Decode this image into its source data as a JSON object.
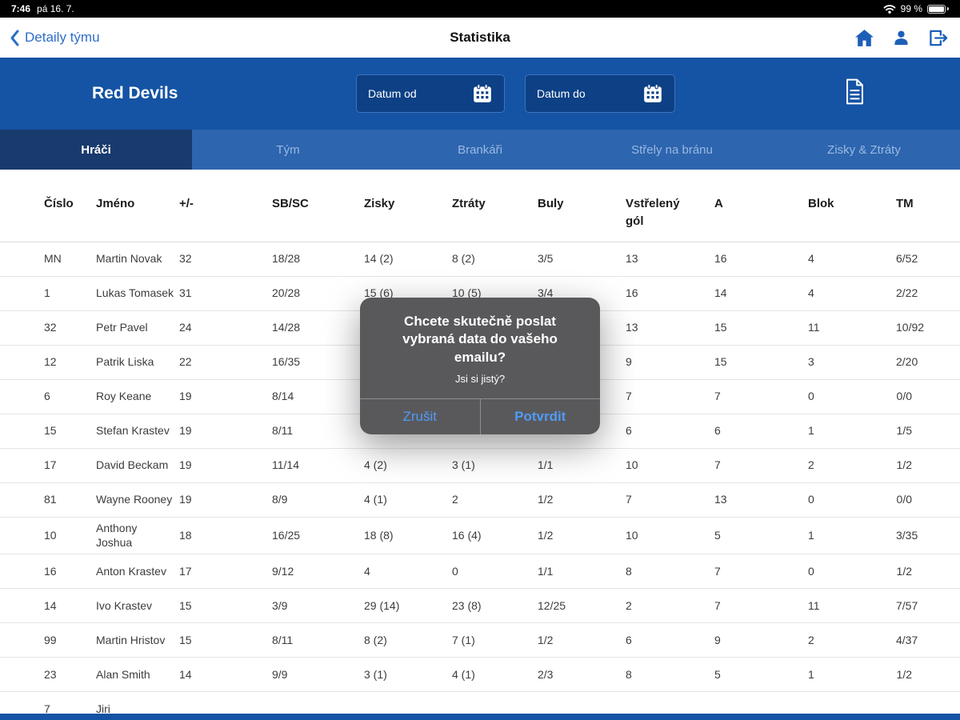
{
  "status_bar": {
    "time": "7:46",
    "date": "pá 16. 7.",
    "battery_percent": "99 %"
  },
  "nav": {
    "back_label": "Detaily týmu",
    "title": "Statistika"
  },
  "header": {
    "team_name": "Red Devils",
    "date_from_label": "Datum od",
    "date_to_label": "Datum do"
  },
  "tabs": [
    {
      "label": "Hráči",
      "active": true
    },
    {
      "label": "Tým",
      "active": false
    },
    {
      "label": "Brankáři",
      "active": false
    },
    {
      "label": "Střely na bránu",
      "active": false
    },
    {
      "label": "Zisky & Ztráty",
      "active": false
    }
  ],
  "table": {
    "columns": [
      "Číslo",
      "Jméno",
      "+/-",
      "SB/SC",
      "Zisky",
      "Ztráty",
      "Buly",
      "Vstřelený gól",
      "A",
      "Blok",
      "TM"
    ],
    "rows": [
      [
        "MN",
        "Martin Novak",
        "32",
        "18/28",
        "14 (2)",
        "8 (2)",
        "3/5",
        "13",
        "16",
        "4",
        "6/52"
      ],
      [
        "1",
        "Lukas Tomasek",
        "31",
        "20/28",
        "15 (6)",
        "10 (5)",
        "3/4",
        "16",
        "14",
        "4",
        "2/22"
      ],
      [
        "32",
        "Petr Pavel",
        "24",
        "14/28",
        "",
        "",
        "",
        "13",
        "15",
        "11",
        "10/92"
      ],
      [
        "12",
        "Patrik Liska",
        "22",
        "16/35",
        "",
        "",
        "",
        "9",
        "15",
        "3",
        "2/20"
      ],
      [
        "6",
        "Roy Keane",
        "19",
        "8/14",
        "",
        "",
        "",
        "7",
        "7",
        "0",
        "0/0"
      ],
      [
        "15",
        "Stefan Krastev",
        "19",
        "8/11",
        "",
        "",
        "",
        "6",
        "6",
        "1",
        "1/5"
      ],
      [
        "17",
        "David Beckam",
        "19",
        "11/14",
        "4 (2)",
        "3 (1)",
        "1/1",
        "10",
        "7",
        "2",
        "1/2"
      ],
      [
        "81",
        "Wayne Rooney",
        "19",
        "8/9",
        "4 (1)",
        "2",
        "1/2",
        "7",
        "13",
        "0",
        "0/0"
      ],
      [
        "10",
        "Anthony Joshua",
        "18",
        "16/25",
        "18 (8)",
        "16 (4)",
        "1/2",
        "10",
        "5",
        "1",
        "3/35"
      ],
      [
        "16",
        "Anton Krastev",
        "17",
        "9/12",
        "4",
        "0",
        "1/1",
        "8",
        "7",
        "0",
        "1/2"
      ],
      [
        "14",
        "Ivo Krastev",
        "15",
        "3/9",
        "29 (14)",
        "23 (8)",
        "12/25",
        "2",
        "7",
        "11",
        "7/57"
      ],
      [
        "99",
        "Martin Hristov",
        "15",
        "8/11",
        "8 (2)",
        "7 (1)",
        "1/2",
        "6",
        "9",
        "2",
        "4/37"
      ],
      [
        "23",
        "Alan Smith",
        "14",
        "9/9",
        "3 (1)",
        "4 (1)",
        "2/3",
        "8",
        "5",
        "1",
        "1/2"
      ],
      [
        "7",
        "Jiri",
        "",
        "",
        "",
        "",
        "",
        "",
        "",
        "",
        ""
      ]
    ]
  },
  "dialog": {
    "title": "Chcete skutečně poslat vybraná data do vašeho emailu?",
    "message": "Jsi si jistý?",
    "cancel_label": "Zrušit",
    "confirm_label": "Potvrdit"
  },
  "icons": {
    "status": [
      "wifi-icon",
      "battery-icon"
    ],
    "nav": [
      "back-chevron-icon",
      "home-icon",
      "profile-icon",
      "logout-icon"
    ],
    "header": [
      "calendar-icon",
      "report-icon"
    ]
  },
  "colors": {
    "header_blue": "#1553a4",
    "tab_bar_blue": "#2d65ae",
    "active_tab_blue": "#183a6d",
    "accent_blue": "#2e6ec6",
    "dialog_bg": "#565659",
    "dialog_button_blue": "#4f9bf7"
  }
}
